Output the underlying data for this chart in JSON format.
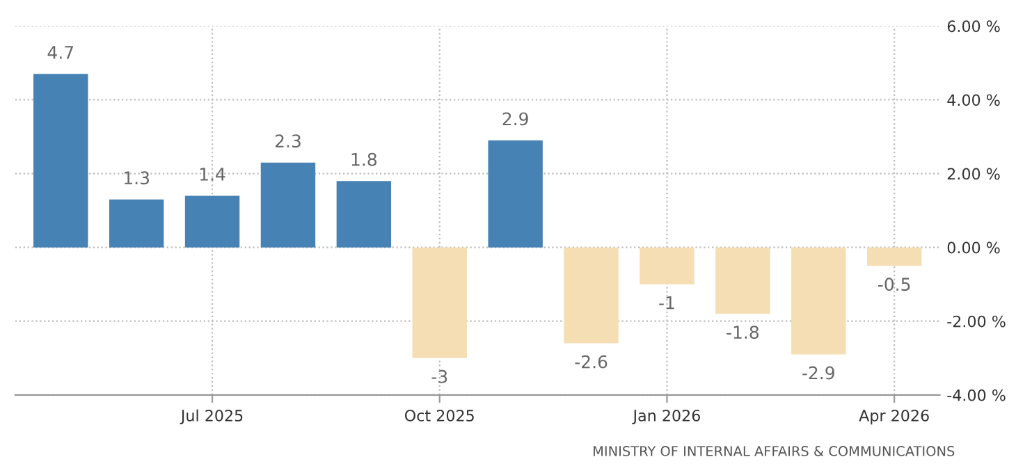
{
  "chart_data": {
    "type": "bar",
    "categories": [
      null,
      null,
      "Jul 2025",
      null,
      null,
      "Oct 2025",
      null,
      null,
      "Jan 2026",
      null,
      null,
      "Apr 2026"
    ],
    "values": [
      4.7,
      1.3,
      1.4,
      2.3,
      1.8,
      -3,
      2.9,
      -2.6,
      -1,
      -1.8,
      -2.9,
      -0.5
    ],
    "colors": [
      "#4682b4",
      "#4682b4",
      "#4682b4",
      "#4682b4",
      "#4682b4",
      "#f5deb3",
      "#4682b4",
      "#f5deb3",
      "#f5deb3",
      "#f5deb3",
      "#f5deb3",
      "#f5deb3"
    ],
    "ylim": [
      -4,
      6
    ],
    "yticks": [
      {
        "value": -4,
        "label": "-4.00 %"
      },
      {
        "value": -2,
        "label": "-2.00 %"
      },
      {
        "value": 0,
        "label": "0.00 %"
      },
      {
        "value": 2,
        "label": "2.00 %"
      },
      {
        "value": 4,
        "label": "4.00 %"
      },
      {
        "value": 6,
        "label": "6.00 %"
      }
    ],
    "grid": true,
    "data_labels": true,
    "annotations": [
      "MINISTRY OF INTERNAL AFFAIRS & COMMUNICATIONS"
    ]
  }
}
